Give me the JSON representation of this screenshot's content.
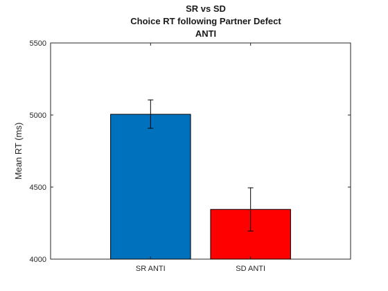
{
  "chart_data": {
    "type": "bar",
    "title": [
      "SR vs SD",
      "Choice RT following Partner Defect",
      "ANTI"
    ],
    "xlabel": "",
    "ylabel": "Mean RT (ms)",
    "ylim": [
      4000,
      5500
    ],
    "yticks": [
      4000,
      4500,
      5000,
      5500
    ],
    "categories": [
      "SR ANTI",
      "SD ANTI"
    ],
    "values": [
      5005,
      4345
    ],
    "error_low": [
      4908,
      4195
    ],
    "error_high": [
      5105,
      4495
    ],
    "colors": [
      "#0072bd",
      "#ff0000"
    ],
    "grid": false,
    "legend": "none"
  }
}
